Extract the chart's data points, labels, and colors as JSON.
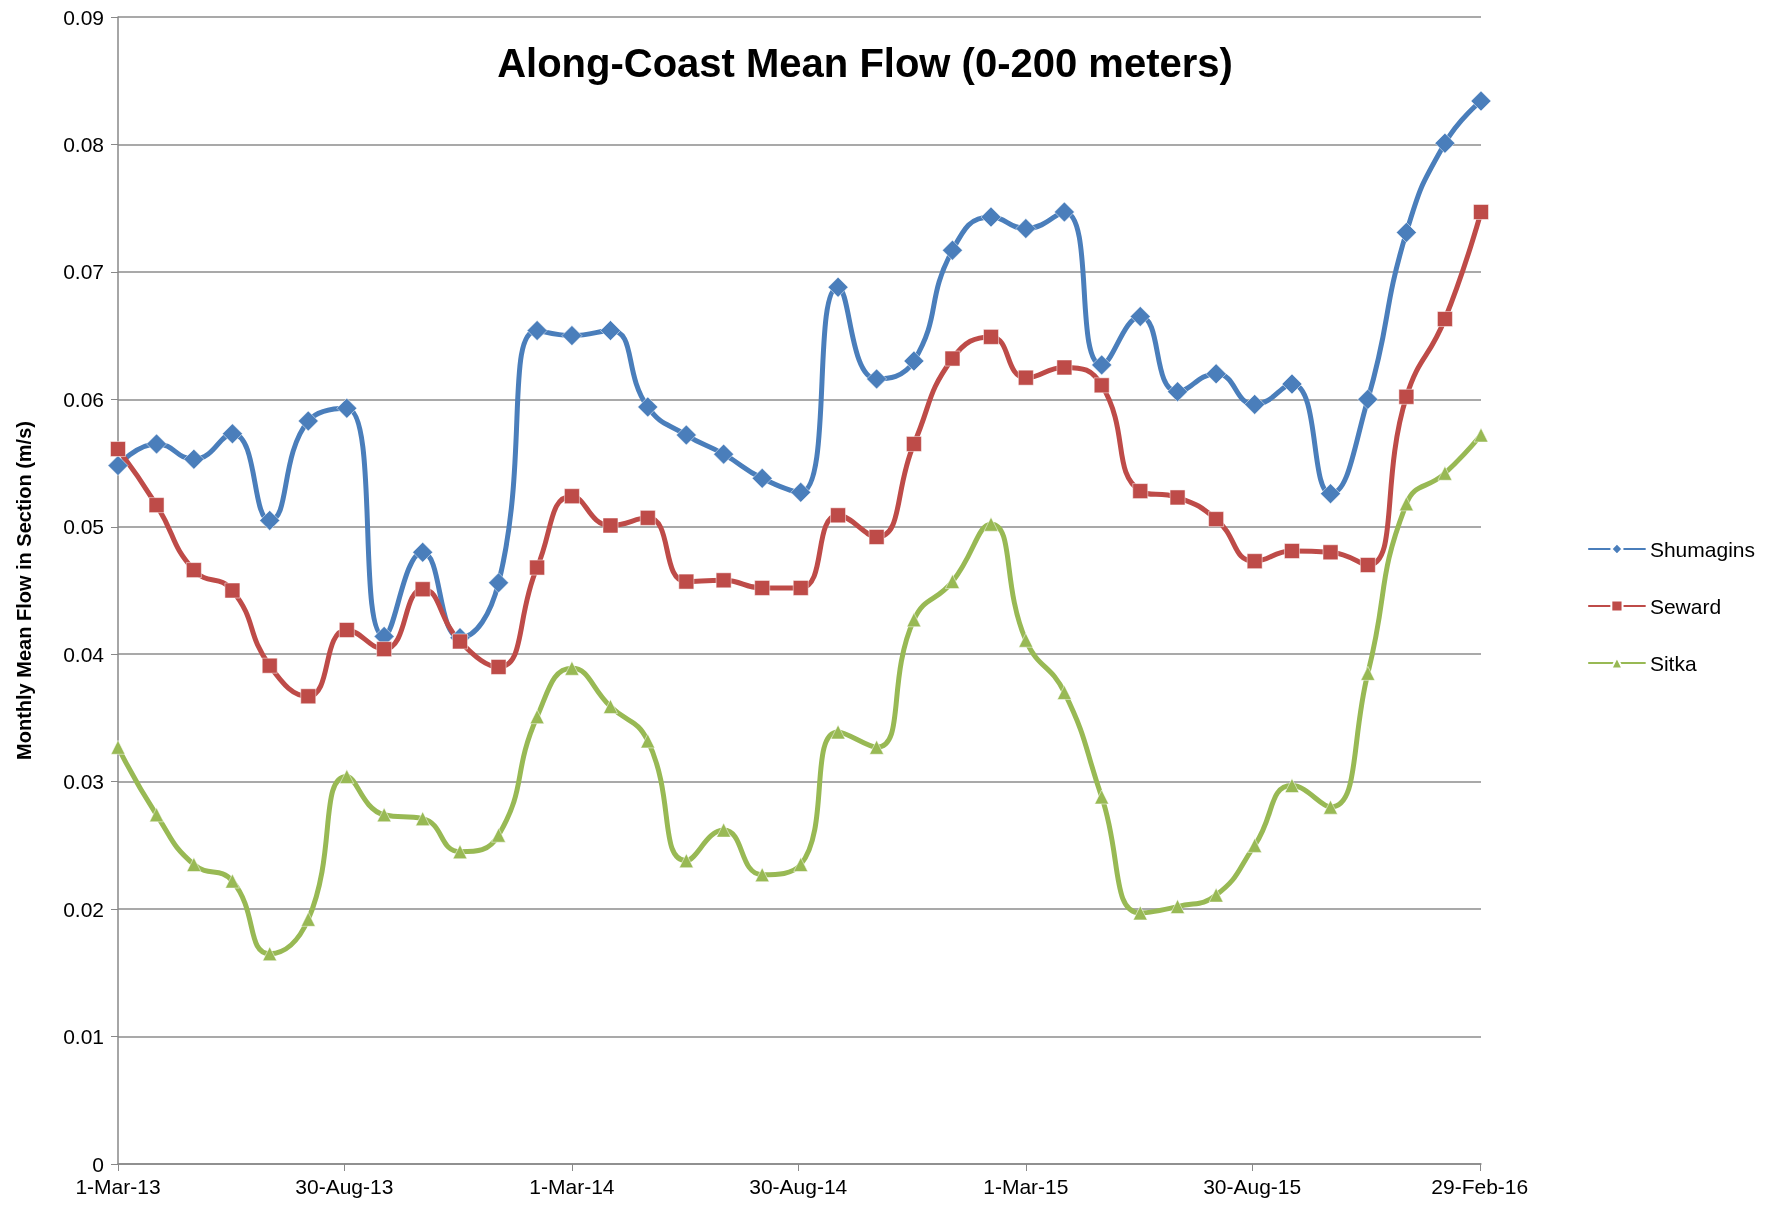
{
  "chart_data": {
    "type": "line",
    "title": "Along-Coast Mean Flow (0-200 meters)",
    "ylabel": "Monthly Mean Flow in Section (m/s)",
    "x": [
      "2013-03-01",
      "2013-04-01",
      "2013-05-01",
      "2013-06-01",
      "2013-07-01",
      "2013-08-01",
      "2013-09-01",
      "2013-10-01",
      "2013-11-01",
      "2013-12-01",
      "2014-01-01",
      "2014-02-01",
      "2014-03-01",
      "2014-04-01",
      "2014-05-01",
      "2014-06-01",
      "2014-07-01",
      "2014-08-01",
      "2014-09-01",
      "2014-10-01",
      "2014-11-01",
      "2014-12-01",
      "2015-01-01",
      "2015-02-01",
      "2015-03-01",
      "2015-04-01",
      "2015-05-01",
      "2015-06-01",
      "2015-07-01",
      "2015-08-01",
      "2015-09-01",
      "2015-10-01",
      "2015-11-01",
      "2015-12-01",
      "2016-01-01",
      "2016-02-01",
      "2016-03-01"
    ],
    "series": [
      {
        "name": "Shumagins",
        "color": "#4a7ebb",
        "marker": "diamond",
        "values": [
          0.0548,
          0.0565,
          0.0553,
          0.0573,
          0.0505,
          0.0583,
          0.0593,
          0.0414,
          0.048,
          0.0413,
          0.0456,
          0.0654,
          0.065,
          0.0654,
          0.0594,
          0.0572,
          0.0557,
          0.0538,
          0.0527,
          0.0688,
          0.0616,
          0.063,
          0.0717,
          0.0743,
          0.0734,
          0.0747,
          0.0627,
          0.0665,
          0.0606,
          0.062,
          0.0596,
          0.0612,
          0.0526,
          0.06,
          0.0731,
          0.0801,
          0.0834
        ]
      },
      {
        "name": "Seward",
        "color": "#be4b48",
        "marker": "square",
        "values": [
          0.0561,
          0.0517,
          0.0466,
          0.045,
          0.0391,
          0.0367,
          0.0419,
          0.0404,
          0.0451,
          0.041,
          0.039,
          0.0468,
          0.0524,
          0.0501,
          0.0507,
          0.0457,
          0.0458,
          0.0452,
          0.0452,
          0.0509,
          0.0492,
          0.0565,
          0.0632,
          0.0649,
          0.0617,
          0.0625,
          0.0611,
          0.0528,
          0.0523,
          0.0506,
          0.0473,
          0.0481,
          0.048,
          0.047,
          0.0602,
          0.0663,
          0.0747
        ]
      },
      {
        "name": "Sitka",
        "color": "#98b954",
        "marker": "triangle",
        "values": [
          0.0327,
          0.0274,
          0.0235,
          0.0222,
          0.0165,
          0.0192,
          0.0304,
          0.0274,
          0.0271,
          0.0245,
          0.0258,
          0.0351,
          0.0389,
          0.0359,
          0.0332,
          0.0238,
          0.0262,
          0.0227,
          0.0235,
          0.0339,
          0.0327,
          0.0427,
          0.0457,
          0.0502,
          0.0411,
          0.037,
          0.0288,
          0.0197,
          0.0202,
          0.0211,
          0.025,
          0.0297,
          0.028,
          0.0385,
          0.0518,
          0.0542,
          0.0572
        ]
      }
    ],
    "xlim": [
      "2013-03-01",
      "2016-03-01"
    ],
    "xticks": [
      {
        "value": "2013-03-01",
        "label": "1-Mar-13"
      },
      {
        "value": "2013-08-30",
        "label": "30-Aug-13"
      },
      {
        "value": "2014-03-01",
        "label": "1-Mar-14"
      },
      {
        "value": "2014-08-30",
        "label": "30-Aug-14"
      },
      {
        "value": "2015-03-01",
        "label": "1-Mar-15"
      },
      {
        "value": "2015-08-30",
        "label": "30-Aug-15"
      },
      {
        "value": "2016-02-29",
        "label": "29-Feb-16"
      }
    ],
    "ylim": [
      0,
      0.09
    ],
    "yticks": [
      0,
      0.01,
      0.02,
      0.03,
      0.04,
      0.05,
      0.06,
      0.07,
      0.08,
      0.09
    ],
    "grid": "y",
    "legend": "right",
    "line_style": "solid"
  }
}
